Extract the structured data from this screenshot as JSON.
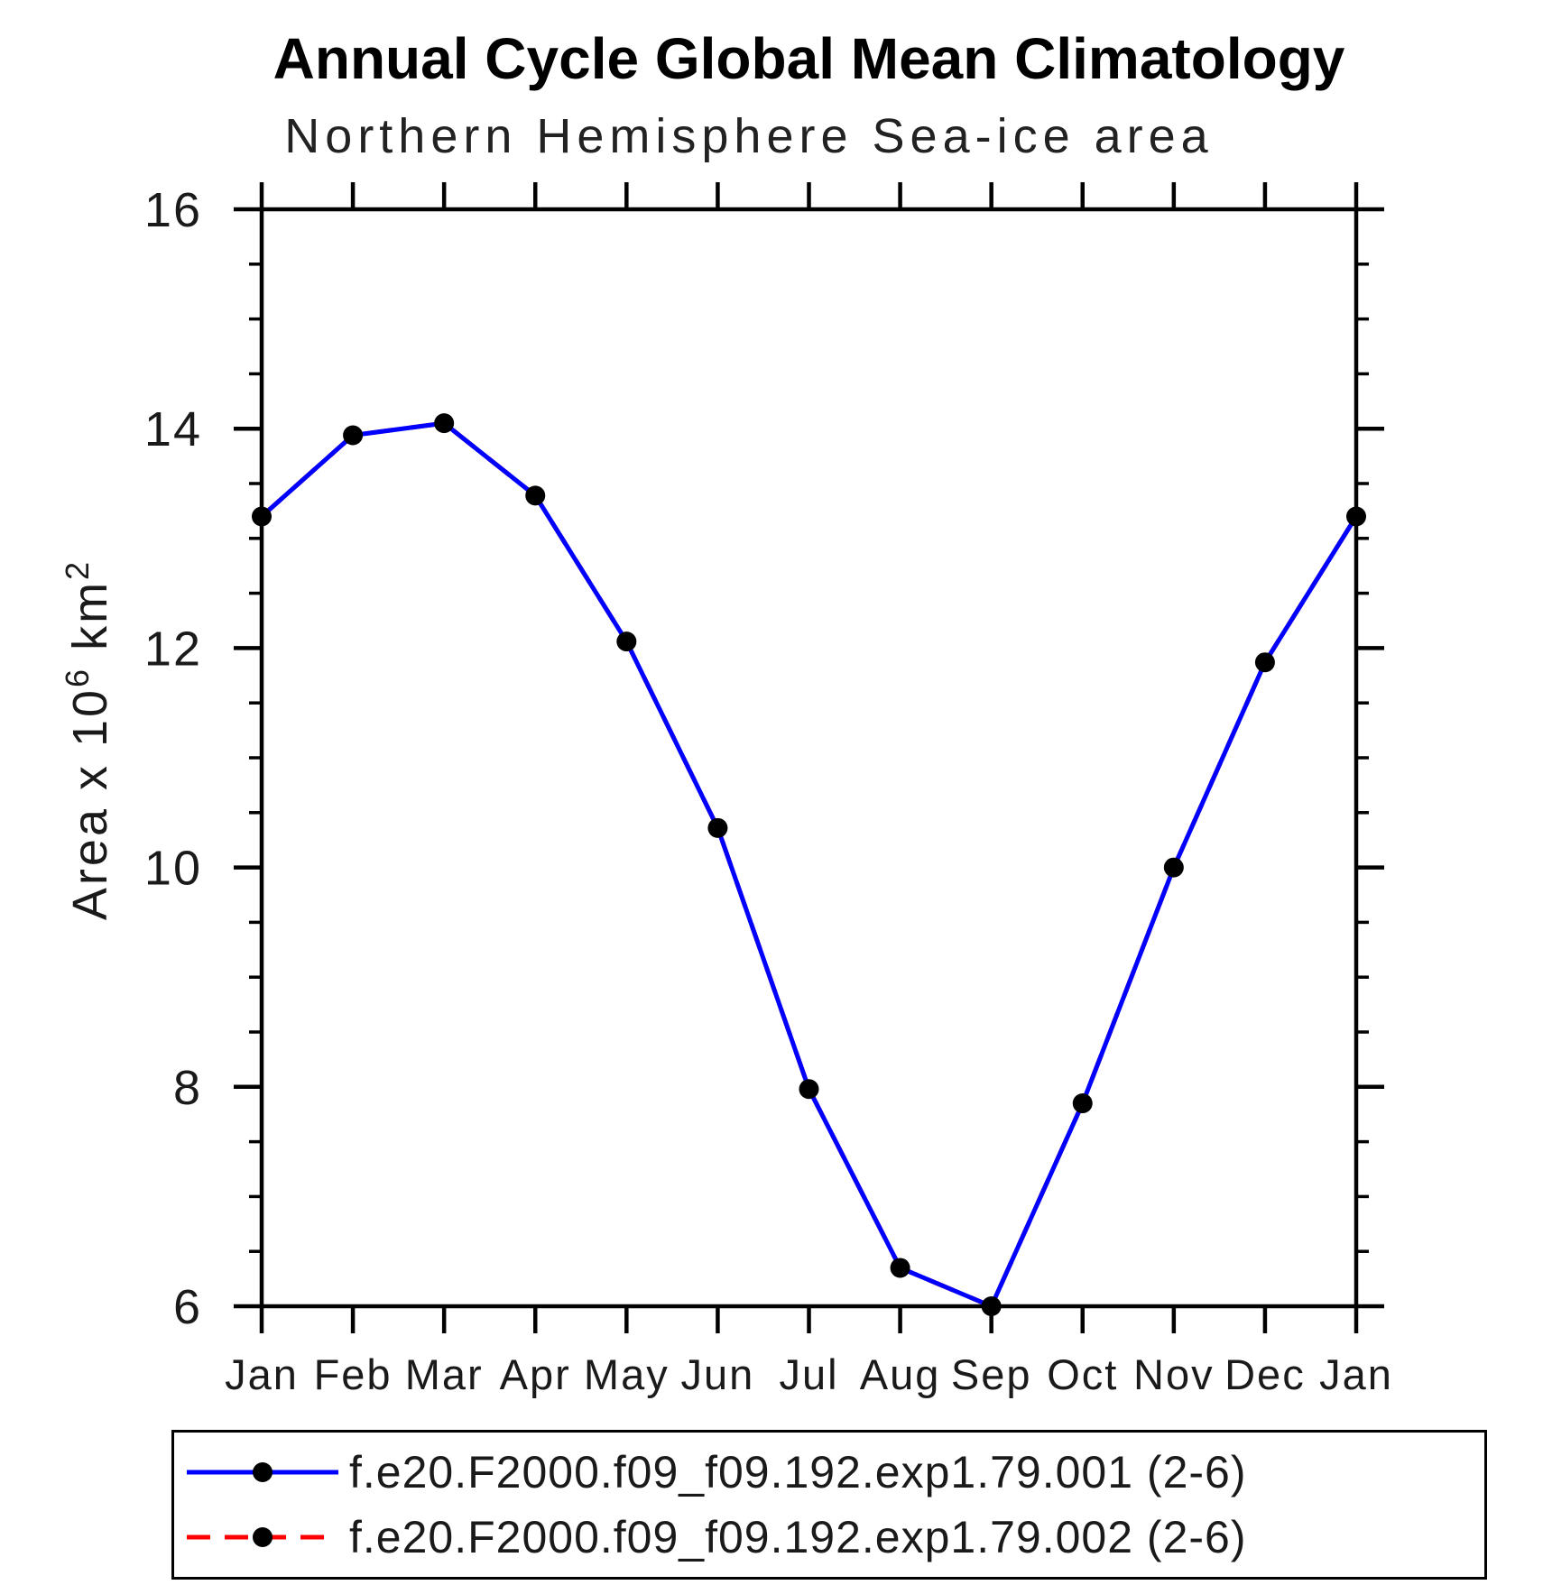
{
  "header": {
    "title": "Annual Cycle Global Mean Climatology",
    "subtitle": "Northern Hemisphere Sea-ice area"
  },
  "chart_data": {
    "type": "line",
    "title": "Annual Cycle Global Mean Climatology",
    "subtitle": "Northern Hemisphere Sea-ice area",
    "xlabel": "",
    "ylabel": "Area x 10^6 km^2",
    "ylabel_parts": [
      {
        "text": "Area x 10",
        "sup": false
      },
      {
        "text": "6",
        "sup": true
      },
      {
        "text": " km",
        "sup": false
      },
      {
        "text": "2",
        "sup": true
      }
    ],
    "categories": [
      "Jan",
      "Feb",
      "Mar",
      "Apr",
      "May",
      "Jun",
      "Jul",
      "Aug",
      "Sep",
      "Oct",
      "Nov",
      "Dec",
      "Jan"
    ],
    "ylim": [
      6,
      16
    ],
    "yticks_major": [
      6,
      8,
      10,
      12,
      14,
      16
    ],
    "ytick_minor_step": 0.5,
    "grid": false,
    "legend_position": "bottom",
    "series": [
      {
        "name": "f.e20.F2000.f09_f09.192.exp1.79.001 (2-6)",
        "line_color": "#0000ff",
        "line_style": "solid",
        "marker": "filled-circle",
        "marker_color": "#000000",
        "values": [
          13.2,
          13.94,
          14.05,
          13.39,
          12.06,
          10.36,
          7.98,
          6.35,
          6.0,
          7.85,
          10.0,
          11.87,
          13.2
        ]
      },
      {
        "name": "f.e20.F2000.f09_f09.192.exp1.79.002 (2-6)",
        "line_color": "#ff0000",
        "line_style": "dashed",
        "marker": "filled-circle",
        "marker_color": "#000000",
        "values": [
          13.2,
          13.94,
          14.05,
          13.39,
          12.06,
          10.36,
          7.98,
          6.35,
          6.0,
          7.85,
          10.0,
          11.87,
          13.2
        ],
        "note": "overplotted; hidden beneath series 1"
      }
    ]
  },
  "colors": {
    "series1": "#0000ff",
    "series2": "#ff0000",
    "marker": "#000000",
    "axis": "#000000",
    "text": "#1a1a1a",
    "background": "#ffffff"
  }
}
